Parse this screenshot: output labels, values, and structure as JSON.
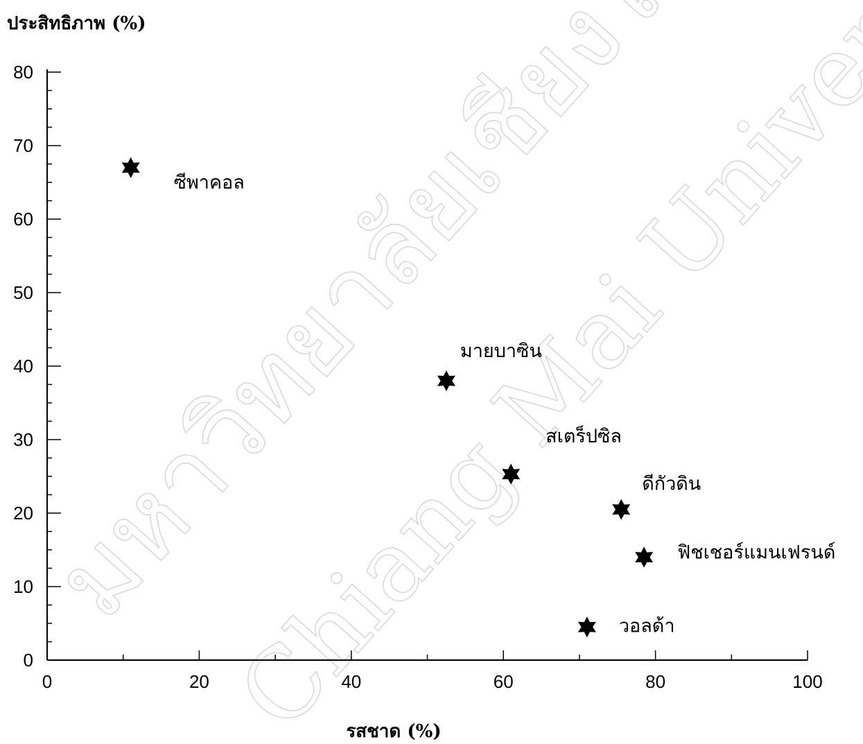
{
  "chart_data": {
    "type": "scatter",
    "ylabel": "ประสิทธิภาพ (%)",
    "xlabel": "รสชาด (%)",
    "xlim": [
      0,
      100
    ],
    "ylim": [
      0,
      80
    ],
    "x_ticks": [
      0,
      20,
      40,
      60,
      80,
      100
    ],
    "y_ticks": [
      0,
      10,
      20,
      30,
      40,
      50,
      60,
      70,
      80
    ],
    "grid": false,
    "marker": "six-pointed-star",
    "points": [
      {
        "label": "ซีพาคอล",
        "x": 11,
        "y": 67
      },
      {
        "label": "มายบาซิน",
        "x": 52.5,
        "y": 38
      },
      {
        "label": "สเตร็ปซิล",
        "x": 61,
        "y": 25.3
      },
      {
        "label": "ดีกัวดิน",
        "x": 75.5,
        "y": 20.5
      },
      {
        "label": "ฟิชเชอร์แมนเฟรนด์",
        "x": 78.5,
        "y": 14
      },
      {
        "label": "วอลด้า",
        "x": 71,
        "y": 4.5
      }
    ]
  },
  "watermark": {
    "line1": "มหาวิทยาลัยเชียงใหม่",
    "line2": "Chiang Mai University"
  }
}
